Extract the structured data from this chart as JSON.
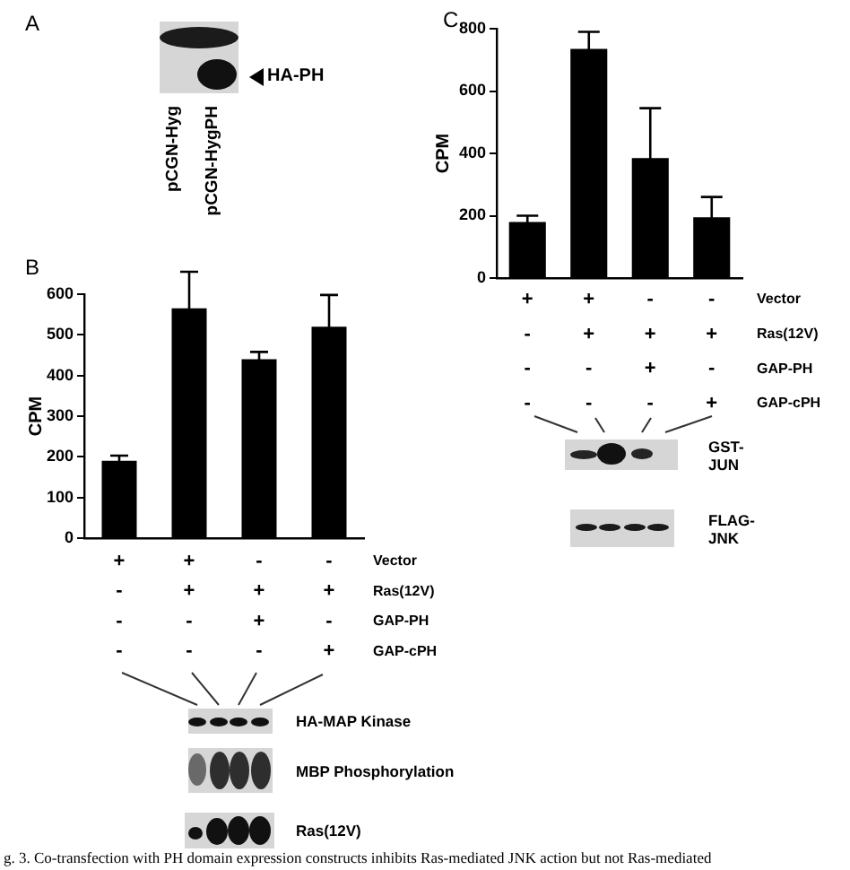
{
  "chart_data": [
    {
      "type": "other",
      "title": "A",
      "categories": [
        "pCGN-Hyg",
        "pCGN-HygPH"
      ],
      "annotations": [
        "HA-PH",
        "g. 3. Co-transfection with PH domain expression constructs inhibits Ras-mediated JNK action but not Ras-mediated"
      ]
    },
    {
      "type": "bar",
      "title": "B",
      "ylabel": "CPM",
      "categories": [
        "+\n-\n-\n-",
        "+\n+\n-\n-",
        "-\n+\n+\n-",
        "-\n+\n-\n+"
      ],
      "values": [
        190,
        565,
        440,
        520
      ],
      "errors": [
        13,
        90,
        18,
        78
      ],
      "color": "#000000",
      "ylim": [
        0,
        600
      ],
      "yticks": [
        0,
        100,
        200,
        300,
        400,
        500,
        600
      ],
      "annotations": [
        "Vector",
        "Ras(12V)",
        "GAP-PH",
        "GAP-cPH",
        "HA-MAP Kinase",
        "MBP Phosphorylation",
        "Ras(12V)"
      ]
    },
    {
      "type": "bar",
      "title": "C",
      "ylabel": "CPM",
      "categories": [
        "+\n-\n-\n-",
        "+\n+\n-\n-",
        "-\n+\n+\n-",
        "-\n+\n-\n+"
      ],
      "values": [
        180,
        735,
        385,
        195
      ],
      "errors": [
        20,
        55,
        160,
        65
      ],
      "color": "#000000",
      "ylim": [
        0,
        800
      ],
      "yticks": [
        0,
        200,
        400,
        600,
        800
      ],
      "annotations": [
        "Vector",
        "Ras(12V)",
        "GAP-PH",
        "GAP-cPH",
        "GST-\nJUN",
        "FLAG-\nJNK"
      ]
    }
  ]
}
